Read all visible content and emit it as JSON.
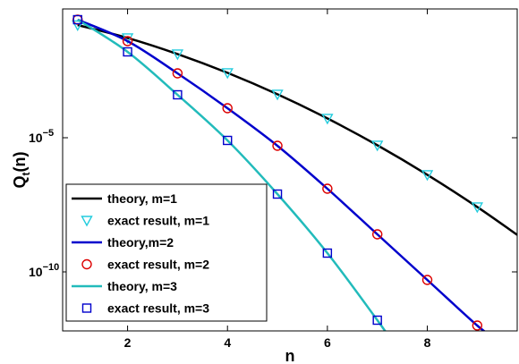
{
  "chart_data": {
    "type": "line",
    "xlabel": "n",
    "ylabel": "Q",
    "ylabel_sub": "t",
    "ylabel_tail": "(n)",
    "xlim": [
      0.7,
      9.8
    ],
    "ylim_log10": [
      -12.2,
      -0.2
    ],
    "y_scale": "log",
    "x_ticks": [
      2,
      4,
      6,
      8
    ],
    "y_ticks": [
      {
        "exp": -5,
        "base": "10",
        "sup": "−5"
      },
      {
        "exp": -10,
        "base": "10",
        "sup": "−10"
      }
    ],
    "legend_position": "bottom-left",
    "series": [
      {
        "name": "theory, m=1",
        "kind": "line",
        "color": "#000000",
        "x": [
          1,
          2,
          3,
          4,
          5,
          6,
          7,
          8,
          9,
          9.8
        ],
        "log10_y": [
          -0.8,
          -1.28,
          -1.88,
          -2.58,
          -3.38,
          -4.28,
          -5.28,
          -6.38,
          -7.58,
          -8.62
        ]
      },
      {
        "name": "exact result, m=1",
        "kind": "marker",
        "marker": "triangle-down",
        "color": "#22CCDD",
        "x": [
          1,
          2,
          3,
          4,
          5,
          6,
          7,
          8,
          9
        ],
        "log10_y": [
          -0.8,
          -1.28,
          -1.88,
          -2.58,
          -3.38,
          -4.28,
          -5.28,
          -6.38,
          -7.58
        ]
      },
      {
        "name": "theory,m=2",
        "kind": "line",
        "color": "#0000CC",
        "x": [
          1,
          2,
          3,
          4,
          5,
          6,
          7,
          8,
          9,
          9.3
        ],
        "log10_y": [
          -0.6,
          -1.4,
          -2.6,
          -3.9,
          -5.3,
          -6.9,
          -8.6,
          -10.3,
          -12.0,
          -12.4
        ]
      },
      {
        "name": "exact result, m=2",
        "kind": "marker",
        "marker": "circle",
        "color": "#DD0000",
        "x": [
          1,
          2,
          3,
          4,
          5,
          6,
          7,
          8,
          9
        ],
        "log10_y": [
          -0.6,
          -1.4,
          -2.6,
          -3.9,
          -5.3,
          -6.9,
          -8.6,
          -10.3,
          -12.0
        ]
      },
      {
        "name": "theory, m=3",
        "kind": "line",
        "color": "#22BBBB",
        "x": [
          1,
          2,
          3,
          4,
          5,
          6,
          7,
          7.3
        ],
        "log10_y": [
          -0.6,
          -1.8,
          -3.4,
          -5.1,
          -7.1,
          -9.3,
          -11.8,
          -12.6
        ]
      },
      {
        "name": "exact result, m=3",
        "kind": "marker",
        "marker": "square",
        "color": "#0000CC",
        "x": [
          1,
          2,
          3,
          4,
          5,
          6,
          7
        ],
        "log10_y": [
          -0.6,
          -1.8,
          -3.4,
          -5.1,
          -7.1,
          -9.3,
          -11.8
        ]
      }
    ]
  }
}
